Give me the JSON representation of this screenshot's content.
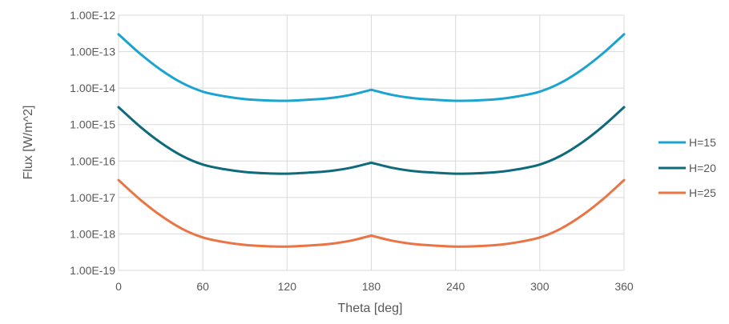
{
  "chart_data": {
    "type": "line",
    "title": "",
    "xlabel": "Theta [deg]",
    "ylabel": "Flux [W/m^2]",
    "xlim": [
      0,
      360
    ],
    "ylim": [
      1e-19,
      1e-12
    ],
    "y_scale": "log",
    "grid": true,
    "legend_position": "right",
    "x_ticks": [
      0,
      60,
      120,
      180,
      240,
      300,
      360
    ],
    "x_tick_labels": [
      "0",
      "60",
      "120",
      "180",
      "240",
      "300",
      "360"
    ],
    "y_ticks": [
      1e-12,
      1e-13,
      1e-14,
      1e-15,
      1e-16,
      1e-17,
      1e-18,
      1e-19
    ],
    "y_tick_labels": [
      "1.00E-12",
      "1.00E-13",
      "1.00E-14",
      "1.00E-15",
      "1.00E-16",
      "1.00E-17",
      "1.00E-18",
      "1.00E-19"
    ],
    "x": [
      0,
      15,
      30,
      45,
      60,
      75,
      90,
      105,
      120,
      135,
      150,
      165,
      180,
      195,
      210,
      225,
      240,
      255,
      270,
      285,
      300,
      315,
      330,
      345,
      360
    ],
    "series": [
      {
        "name": "H=15",
        "color": "#1ba4cf",
        "values": [
          3e-13,
          9e-14,
          3.2e-14,
          1.4e-14,
          8e-15,
          6e-15,
          5e-15,
          4.6e-15,
          4.5e-15,
          4.8e-15,
          5.3e-15,
          6.5e-15,
          9e-15,
          6.5e-15,
          5.3e-15,
          4.8e-15,
          4.5e-15,
          4.6e-15,
          5e-15,
          6e-15,
          8e-15,
          1.4e-14,
          3.2e-14,
          9e-14,
          3e-13
        ]
      },
      {
        "name": "H=20",
        "color": "#0f6b7c",
        "values": [
          3e-15,
          9e-16,
          3.2e-16,
          1.4e-16,
          8e-17,
          6e-17,
          5e-17,
          4.6e-17,
          4.5e-17,
          4.8e-17,
          5.3e-17,
          6.5e-17,
          9e-17,
          6.5e-17,
          5.3e-17,
          4.8e-17,
          4.5e-17,
          4.6e-17,
          5e-17,
          6e-17,
          8e-17,
          1.4e-16,
          3.2e-16,
          9e-16,
          3e-15
        ]
      },
      {
        "name": "H=25",
        "color": "#ea7444",
        "values": [
          3e-17,
          9e-18,
          3.2e-18,
          1.4e-18,
          8e-19,
          6e-19,
          5e-19,
          4.6e-19,
          4.5e-19,
          4.8e-19,
          5.3e-19,
          6.5e-19,
          9e-19,
          6.5e-19,
          5.3e-19,
          4.8e-19,
          4.5e-19,
          4.6e-19,
          5e-19,
          6e-19,
          8e-19,
          1.4e-18,
          3.2e-18,
          9e-18,
          3e-17
        ]
      }
    ]
  }
}
